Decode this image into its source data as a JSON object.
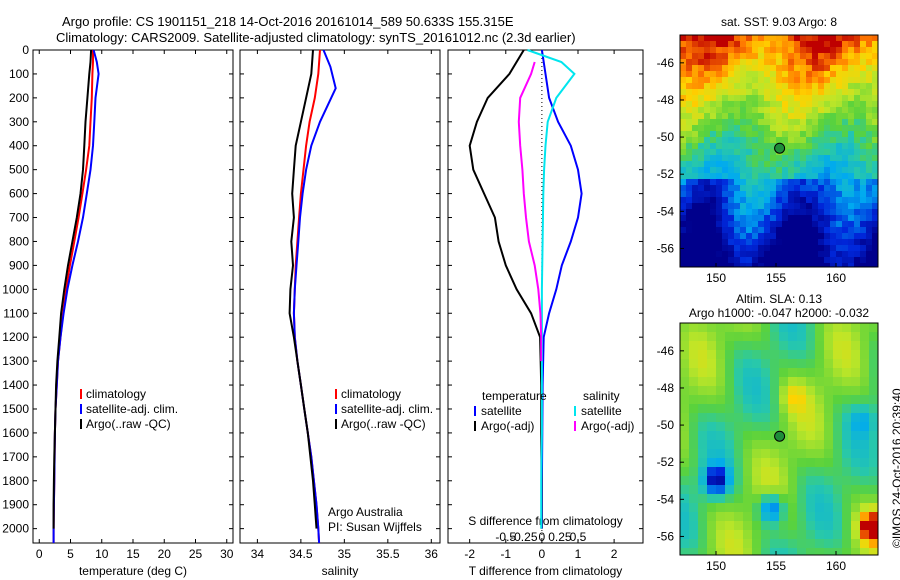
{
  "header": {
    "line1": "Argo profile: CS 1901151_218 14-Oct-2016 20161014_589 50.633S 155.315E",
    "line2": "Climatology: CARS2009. Satellite-adjusted climatology: synTS_20161012.nc (2.3d earlier)"
  },
  "footer": {
    "credit": "©IMOS 24-Oct-2016 20:39:40"
  },
  "colors": {
    "climatology": "#ff0000",
    "satellite": "#0000ff",
    "argo": "#000000",
    "s_satellite": "#00e5ee",
    "s_argo": "#ff00ff"
  },
  "chart_data": [
    {
      "id": "temperature",
      "type": "line",
      "xlabel": "temperature (deg C)",
      "ylabel": "",
      "xlim": [
        -1,
        31
      ],
      "ylim": [
        2060,
        0
      ],
      "xticks": [
        0,
        5,
        10,
        15,
        20,
        25,
        30
      ],
      "yticks": [
        0,
        100,
        200,
        300,
        400,
        500,
        600,
        700,
        800,
        900,
        1000,
        1100,
        1200,
        1300,
        1400,
        1500,
        1600,
        1700,
        1800,
        1900,
        2000
      ],
      "legend": [
        "climatology",
        "satellite-adj. clim.",
        "Argo(..raw -QC)"
      ],
      "series": [
        {
          "name": "climatology",
          "color": "#ff0000",
          "x": [
            8.6,
            8.6,
            8.5,
            8.4,
            8.2,
            8.0,
            7.5,
            6.9,
            6.3,
            5.6,
            4.9,
            4.3,
            3.8,
            3.4,
            3.0,
            2.8,
            2.6,
            2.5,
            2.45,
            2.4,
            2.35,
            2.3,
            2.3
          ],
          "y": [
            0,
            50,
            100,
            200,
            300,
            400,
            500,
            600,
            700,
            800,
            900,
            1000,
            1100,
            1200,
            1300,
            1400,
            1500,
            1600,
            1700,
            1800,
            1900,
            2000,
            2060
          ]
        },
        {
          "name": "satellite-adj. clim.",
          "color": "#0000ff",
          "x": [
            8.7,
            9.2,
            9.5,
            9.0,
            8.8,
            8.6,
            8.2,
            7.6,
            7.0,
            6.2,
            5.3,
            4.5,
            3.9,
            3.4,
            3.0,
            2.8,
            2.6,
            2.5,
            2.45,
            2.4,
            2.35,
            2.3,
            2.3
          ],
          "y": [
            0,
            50,
            100,
            200,
            300,
            400,
            500,
            600,
            700,
            800,
            900,
            1000,
            1100,
            1200,
            1300,
            1400,
            1500,
            1600,
            1700,
            1800,
            1900,
            2000,
            2060
          ]
        },
        {
          "name": "Argo(..raw -QC)",
          "color": "#000000",
          "x": [
            8.3,
            8.2,
            8.0,
            7.7,
            7.4,
            7.2,
            7.0,
            6.6,
            6.0,
            5.3,
            4.6,
            4.0,
            3.5,
            3.2,
            2.9,
            2.7,
            2.6,
            2.5,
            2.4,
            2.35,
            2.3,
            2.3
          ],
          "y": [
            0,
            50,
            100,
            200,
            300,
            400,
            500,
            600,
            700,
            800,
            900,
            1000,
            1100,
            1200,
            1300,
            1400,
            1500,
            1600,
            1700,
            1800,
            1900,
            2000
          ]
        }
      ]
    },
    {
      "id": "salinity",
      "type": "line",
      "xlabel": "salinity",
      "ylabel": "",
      "xlim": [
        33.8,
        36.1
      ],
      "ylim": [
        2060,
        0
      ],
      "xticks": [
        34,
        34.5,
        35,
        35.5,
        36
      ],
      "xticklabels": [
        "34",
        "34.5",
        "35",
        "35.5",
        "36"
      ],
      "legend": [
        "climatology",
        "satellite-adj. clim.",
        "Argo(..raw -QC)"
      ],
      "annotation": [
        "Argo Australia",
        "PI: Susan Wijffels"
      ],
      "series": [
        {
          "name": "climatology",
          "color": "#ff0000",
          "x": [
            34.72,
            34.7,
            34.66,
            34.6,
            34.56,
            34.53,
            34.5,
            34.48,
            34.46,
            34.44,
            34.43,
            34.42,
            34.43,
            34.46,
            34.5,
            34.54,
            34.58,
            34.62,
            34.65,
            34.68,
            34.7,
            34.71
          ],
          "y": [
            0,
            100,
            200,
            300,
            400,
            500,
            600,
            700,
            800,
            900,
            1000,
            1100,
            1200,
            1300,
            1400,
            1500,
            1600,
            1700,
            1800,
            1900,
            2000,
            2060
          ]
        },
        {
          "name": "satellite-adj. clim.",
          "color": "#0000ff",
          "x": [
            34.76,
            34.84,
            34.9,
            34.72,
            34.62,
            34.56,
            34.52,
            34.49,
            34.47,
            34.45,
            34.43,
            34.42,
            34.43,
            34.46,
            34.5,
            34.54,
            34.58,
            34.62,
            34.65,
            34.68,
            34.7,
            34.71
          ],
          "y": [
            0,
            70,
            160,
            300,
            400,
            500,
            600,
            700,
            800,
            900,
            1000,
            1100,
            1200,
            1300,
            1400,
            1500,
            1600,
            1700,
            1800,
            1900,
            2000,
            2060
          ]
        },
        {
          "name": "Argo(..raw -QC)",
          "color": "#000000",
          "x": [
            34.64,
            34.62,
            34.56,
            34.5,
            34.44,
            34.42,
            34.4,
            34.42,
            34.39,
            34.41,
            34.38,
            34.37,
            34.42,
            34.46,
            34.5,
            34.54,
            34.58,
            34.61,
            34.64,
            34.66,
            34.68
          ],
          "y": [
            0,
            100,
            200,
            300,
            400,
            500,
            600,
            700,
            800,
            900,
            1000,
            1100,
            1200,
            1300,
            1400,
            1500,
            1600,
            1700,
            1800,
            1900,
            2000
          ]
        }
      ]
    },
    {
      "id": "difference",
      "type": "line",
      "xlabel": "T difference from climatology",
      "xlabel2": "S difference from climatology",
      "xlim": [
        -2.6,
        2.8
      ],
      "ylim": [
        2060,
        0
      ],
      "xticks": [
        -2,
        -1,
        0,
        1,
        2
      ],
      "sticks": [
        -0.5,
        -0.25,
        0,
        0.25,
        0.5
      ],
      "sticklabels": [
        "-0.5",
        "-0.25",
        "0",
        "0.25",
        "0.5"
      ],
      "legend_headers": [
        "temperature",
        "salinity"
      ],
      "legend": [
        "satellite",
        "Argo(-adj)",
        "satellite",
        "Argo(-adj)"
      ],
      "series": [
        {
          "name": "satellite",
          "group": "temperature",
          "color": "#0000ff",
          "x": [
            0.0,
            0.1,
            0.2,
            0.45,
            0.8,
            1.0,
            1.1,
            1.0,
            0.8,
            0.55,
            0.4,
            0.2,
            0.05,
            0.02,
            0.01,
            0.0,
            0.0
          ],
          "y": [
            0,
            100,
            200,
            300,
            400,
            500,
            600,
            700,
            800,
            900,
            1000,
            1100,
            1200,
            1400,
            1600,
            1800,
            2000
          ]
        },
        {
          "name": "Argo(-adj)",
          "group": "temperature",
          "color": "#000000",
          "x": [
            -0.5,
            -0.9,
            -1.5,
            -1.8,
            -2.0,
            -1.9,
            -1.6,
            -1.3,
            -1.2,
            -1.0,
            -0.7,
            -0.3,
            -0.05,
            -0.02,
            -0.02,
            -0.01,
            -0.01
          ],
          "y": [
            0,
            100,
            200,
            300,
            400,
            500,
            600,
            700,
            800,
            900,
            1000,
            1100,
            1200,
            1400,
            1600,
            1800,
            2000
          ]
        },
        {
          "name": "satellite",
          "group": "salinity",
          "color": "#00e5ee",
          "x": [
            -0.2,
            0.27,
            0.45,
            0.2,
            0.08,
            0.05,
            0.03,
            0.02,
            0.01,
            0.0,
            0.0,
            0.0,
            0.0,
            -0.01,
            -0.01,
            -0.01
          ],
          "y": [
            0,
            50,
            100,
            200,
            300,
            400,
            500,
            600,
            800,
            1000,
            1200,
            1400,
            1600,
            1800,
            1900,
            2000
          ]
        },
        {
          "name": "Argo(-adj)",
          "group": "salinity",
          "color": "#ff00ff",
          "x": [
            -0.1,
            -0.15,
            -0.3,
            -0.32,
            -0.3,
            -0.27,
            -0.25,
            -0.22,
            -0.18,
            -0.1,
            -0.05,
            -0.02,
            -0.01,
            -0.01
          ],
          "y": [
            50,
            100,
            200,
            300,
            400,
            500,
            600,
            700,
            800,
            900,
            1000,
            1100,
            1200,
            1300
          ]
        }
      ]
    },
    {
      "id": "sst_map",
      "type": "heatmap",
      "title": "sat. SST: 9.03 Argo: 8",
      "xlim": [
        147,
        163.5
      ],
      "ylim": [
        -57,
        -44.5
      ],
      "xticks": [
        150,
        155,
        160
      ],
      "yticks": [
        -46,
        -48,
        -50,
        -52,
        -54,
        -56
      ],
      "marker": {
        "lon": 155.3,
        "lat": -50.6
      }
    },
    {
      "id": "sla_map",
      "type": "heatmap",
      "title": "Altim. SLA: 0.13",
      "subtitle": "Argo h1000: -0.047 h2000: -0.032",
      "xlim": [
        147,
        163.5
      ],
      "ylim": [
        -57,
        -44.5
      ],
      "xticks": [
        150,
        155,
        160
      ],
      "yticks": [
        -46,
        -48,
        -50,
        -52,
        -54,
        -56
      ],
      "marker": {
        "lon": 155.3,
        "lat": -50.6
      }
    }
  ]
}
